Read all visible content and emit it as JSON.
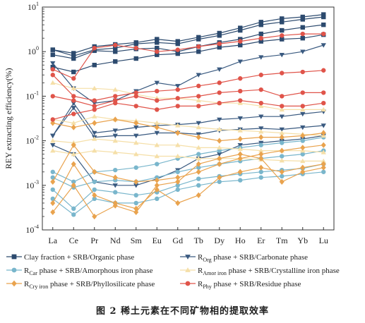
{
  "chart_data": {
    "type": "line",
    "ylabel": "REY extracting efficiency(%)",
    "yscale": "log",
    "ylim": [
      0.0001,
      10
    ],
    "y_ticks": [
      {
        "base": "10",
        "exp": "-4"
      },
      {
        "base": "10",
        "exp": "-3"
      },
      {
        "base": "10",
        "exp": "-2"
      },
      {
        "base": "10",
        "exp": "-1"
      },
      {
        "base": "10",
        "exp": "0"
      },
      {
        "base": "10",
        "exp": "1"
      }
    ],
    "categories": [
      "La",
      "Ce",
      "Pr",
      "Nd",
      "Sm",
      "Eu",
      "Gd",
      "Tb",
      "Dy",
      "Ho",
      "Er",
      "Tm",
      "Yb",
      "Lu"
    ],
    "series_groups": [
      {
        "key": "clay",
        "color": "#2c4a6e",
        "marker": "square",
        "series": [
          {
            "values": [
              1.1,
              0.92,
              1.3,
              1.45,
              1.6,
              1.9,
              1.7,
              2.1,
              2.6,
              3.4,
              4.6,
              5.5,
              6.0,
              6.8
            ]
          },
          {
            "values": [
              1.1,
              0.8,
              1.1,
              1.2,
              1.5,
              1.6,
              1.5,
              1.9,
              2.3,
              3.0,
              4.0,
              4.6,
              5.3,
              6.0
            ]
          },
          {
            "values": [
              0.85,
              0.7,
              1.05,
              1.0,
              1.15,
              1.2,
              1.0,
              1.3,
              1.6,
              1.9,
              2.5,
              3.0,
              3.5,
              4.0
            ]
          },
          {
            "values": [
              0.45,
              0.35,
              0.5,
              0.6,
              0.7,
              0.85,
              0.9,
              1.0,
              1.25,
              1.4,
              1.7,
              1.9,
              2.0,
              2.4
            ]
          }
        ]
      },
      {
        "key": "org",
        "color": "#3a5a80",
        "marker": "triangle-down",
        "series": [
          {
            "values": [
              0.55,
              0.15,
              0.07,
              0.08,
              0.13,
              0.2,
              0.17,
              0.3,
              0.4,
              0.6,
              0.75,
              0.85,
              1.0,
              1.4
            ]
          },
          {
            "values": [
              0.013,
              0.07,
              0.015,
              0.017,
              0.02,
              0.022,
              0.023,
              0.025,
              0.03,
              0.032,
              0.035,
              0.035,
              0.04,
              0.045
            ]
          },
          {
            "values": [
              0.013,
              0.055,
              0.012,
              0.013,
              0.013,
              0.015,
              0.015,
              0.014,
              0.017,
              0.018,
              0.019,
              0.018,
              0.02,
              0.022
            ]
          },
          {
            "values": [
              0.008,
              0.005,
              0.0012,
              0.001,
              0.001,
              0.0014,
              0.0022,
              0.004,
              0.005,
              0.008,
              0.009,
              0.01,
              0.011,
              0.013
            ]
          }
        ]
      },
      {
        "key": "car",
        "color": "#79b6cc",
        "marker": "circle",
        "series": [
          {
            "values": [
              0.002,
              0.0012,
              0.002,
              0.0022,
              0.0025,
              0.003,
              0.004,
              0.005,
              0.006,
              0.007,
              0.008,
              0.009,
              0.01,
              0.012
            ]
          },
          {
            "values": [
              0.0015,
              0.0009,
              0.0012,
              0.0013,
              0.0012,
              0.0015,
              0.002,
              0.0025,
              0.003,
              0.0035,
              0.004,
              0.0045,
              0.005,
              0.006
            ]
          },
          {
            "values": [
              0.0008,
              0.0003,
              0.0008,
              0.0007,
              0.0006,
              0.0007,
              0.001,
              0.0014,
              0.0016,
              0.0018,
              0.002,
              0.0022,
              0.0024,
              0.003
            ]
          },
          {
            "values": [
              0.0005,
              0.00022,
              0.0005,
              0.0004,
              0.0004,
              0.0005,
              0.0008,
              0.001,
              0.0012,
              0.0013,
              0.0015,
              0.0016,
              0.0018,
              0.002
            ]
          }
        ]
      },
      {
        "key": "amor",
        "color": "#f5dfa8",
        "marker": "triangle",
        "series": [
          {
            "values": [
              0.2,
              0.15,
              0.15,
              0.14,
              0.11,
              0.09,
              0.09,
              0.08,
              0.07,
              0.07,
              0.06,
              0.05,
              0.05,
              0.05
            ]
          },
          {
            "values": [
              0.03,
              0.025,
              0.035,
              0.03,
              0.028,
              0.025,
              0.022,
              0.02,
              0.018,
              0.017,
              0.016,
              0.015,
              0.014,
              0.013
            ]
          },
          {
            "values": [
              0.01,
              0.009,
              0.011,
              0.01,
              0.009,
              0.008,
              0.008,
              0.007,
              0.007,
              0.0065,
              0.006,
              0.006,
              0.006,
              0.0055
            ]
          },
          {
            "values": [
              0.006,
              0.005,
              0.006,
              0.0055,
              0.005,
              0.0045,
              0.0045,
              0.004,
              0.004,
              0.004,
              0.0038,
              0.0036,
              0.0035,
              0.0035
            ]
          }
        ]
      },
      {
        "key": "cry",
        "color": "#e9a34e",
        "marker": "diamond",
        "series": [
          {
            "values": [
              0.025,
              0.02,
              0.025,
              0.03,
              0.025,
              0.02,
              0.015,
              0.012,
              0.01,
              0.011,
              0.012,
              0.012,
              0.013,
              0.015
            ]
          },
          {
            "values": [
              0.0012,
              0.008,
              0.002,
              0.0015,
              0.0012,
              0.0013,
              0.0015,
              0.002,
              0.003,
              0.004,
              0.005,
              0.006,
              0.007,
              0.008
            ]
          },
          {
            "values": [
              0.0004,
              0.003,
              0.0006,
              0.0004,
              0.0003,
              0.0008,
              0.0004,
              0.0006,
              0.0015,
              0.002,
              0.0025,
              0.002,
              0.0025,
              0.003
            ]
          },
          {
            "values": [
              0.00025,
              0.001,
              0.0002,
              0.00035,
              0.00025,
              0.001,
              0.0012,
              0.003,
              0.004,
              0.005,
              0.004,
              0.0012,
              0.002,
              0.0025
            ]
          }
        ]
      },
      {
        "key": "phy",
        "color": "#e0544a",
        "marker": "circle",
        "series": [
          {
            "values": [
              0.4,
              0.25,
              1.2,
              1.4,
              1.2,
              1.0,
              1.1,
              1.3,
              1.5,
              1.7,
              2.0,
              2.3,
              2.5,
              2.5
            ]
          },
          {
            "values": [
              0.3,
              0.1,
              0.08,
              0.1,
              0.12,
              0.13,
              0.14,
              0.17,
              0.2,
              0.25,
              0.3,
              0.33,
              0.35,
              0.38
            ]
          },
          {
            "values": [
              0.1,
              0.08,
              0.06,
              0.08,
              0.1,
              0.08,
              0.09,
              0.1,
              0.12,
              0.13,
              0.14,
              0.1,
              0.12,
              0.12
            ]
          },
          {
            "values": [
              0.03,
              0.04,
              0.05,
              0.07,
              0.06,
              0.05,
              0.06,
              0.06,
              0.07,
              0.08,
              0.07,
              0.06,
              0.06,
              0.07
            ]
          }
        ]
      }
    ],
    "legend": {
      "placement": "bottom",
      "items": [
        {
          "key": "clay",
          "marker": "square",
          "color": "#2c4a6e",
          "text": "Clay fraction + SRB/Organic phase"
        },
        {
          "key": "org",
          "marker": "triangle-down",
          "color": "#3a5a80",
          "prefix": "R",
          "sub": "Org",
          "suffix": " phase + SRB/Carbonate phase"
        },
        {
          "key": "car",
          "marker": "circle",
          "color": "#79b6cc",
          "prefix": "R",
          "sub": "Car",
          "suffix": " phase + SRB/Amorphous iron phase"
        },
        {
          "key": "amor",
          "marker": "triangle",
          "color": "#f5dfa8",
          "prefix": "R",
          "sub": "Amor iron",
          "suffix": " phase + SRB/Crystalline iron phase"
        },
        {
          "key": "cry",
          "marker": "diamond",
          "color": "#e9a34e",
          "prefix": "R",
          "sub": "Cry iron",
          "suffix": " phase + SRB/Phyllosilicate phase"
        },
        {
          "key": "phy",
          "marker": "circle",
          "color": "#e0544a",
          "prefix": "R",
          "sub": "Phy",
          "suffix": " phase + SRB/Residue phase"
        }
      ]
    }
  },
  "caption": "图 2  稀土元素在不同矿物相的提取效率"
}
